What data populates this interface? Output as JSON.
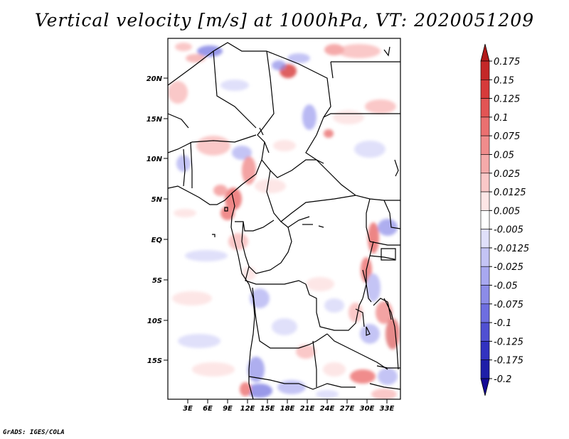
{
  "title": "Vertical velocity [m/s] at 1000hPa, VT: 2020051209",
  "footer": "GrADS: IGES/COLA",
  "lat_labels": [
    "20N",
    "15N",
    "10N",
    "5N",
    "EQ",
    "5S",
    "10S",
    "15S"
  ],
  "lon_labels": [
    "3E",
    "6E",
    "9E",
    "12E",
    "15E",
    "18E",
    "21E",
    "24E",
    "27E",
    "30E",
    "33E"
  ],
  "colorbar": {
    "levels": [
      "0.175",
      "0.15",
      "0.125",
      "0.1",
      "0.075",
      "0.05",
      "0.025",
      "0.0125",
      "0.005",
      "-0.005",
      "-0.0125",
      "-0.025",
      "-0.05",
      "-0.075",
      "-0.1",
      "-0.125",
      "-0.175",
      "-0.2"
    ],
    "colors": [
      "#b21a1a",
      "#c42828",
      "#d63a3a",
      "#e25454",
      "#ea7070",
      "#f08c8c",
      "#f5aaaa",
      "#fac8c8",
      "#fde6e6",
      "#ffffff",
      "#e0e0fa",
      "#c4c4f5",
      "#a8a8f0",
      "#8c8ce8",
      "#6e6ee0",
      "#5050d2",
      "#3232c0",
      "#1e1ea8",
      "#140a96"
    ]
  }
}
